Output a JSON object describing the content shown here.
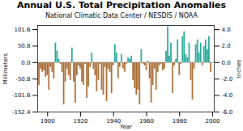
{
  "chart_data": {
    "type": "bar",
    "title": "Annual U.S. Total Precipitation Anomalies",
    "subtitle": "National Climatic Data Center / NESDIS / NOAA",
    "xlabel": "Year",
    "ylabel": "Millimeters",
    "y2label": "Inches",
    "x": [
      1895,
      1896,
      1897,
      1898,
      1899,
      1900,
      1901,
      1902,
      1903,
      1904,
      1905,
      1906,
      1907,
      1908,
      1909,
      1910,
      1911,
      1912,
      1913,
      1914,
      1915,
      1916,
      1917,
      1918,
      1919,
      1920,
      1921,
      1922,
      1923,
      1924,
      1925,
      1926,
      1927,
      1928,
      1929,
      1930,
      1931,
      1932,
      1933,
      1934,
      1935,
      1936,
      1937,
      1938,
      1939,
      1940,
      1941,
      1942,
      1943,
      1944,
      1945,
      1946,
      1947,
      1948,
      1949,
      1950,
      1951,
      1952,
      1953,
      1954,
      1955,
      1956,
      1957,
      1958,
      1959,
      1960,
      1961,
      1962,
      1963,
      1964,
      1965,
      1966,
      1967,
      1968,
      1969,
      1970,
      1971,
      1972,
      1973,
      1974,
      1975,
      1976,
      1977,
      1978,
      1979,
      1980,
      1981,
      1982,
      1983,
      1984,
      1985,
      1986,
      1987,
      1988,
      1989,
      1990,
      1991,
      1992,
      1993,
      1994,
      1995,
      1996,
      1997,
      1998,
      1999
    ],
    "values": [
      -70,
      -20,
      -30,
      -25,
      -45,
      -40,
      -85,
      -15,
      -30,
      -50,
      60,
      35,
      10,
      -5,
      -30,
      -130,
      -60,
      -20,
      -40,
      -55,
      45,
      -60,
      -125,
      -40,
      -10,
      -20,
      -60,
      -70,
      -5,
      -110,
      -75,
      -15,
      30,
      -20,
      -40,
      -90,
      -55,
      -5,
      -85,
      -100,
      -15,
      -120,
      -20,
      -30,
      -95,
      -10,
      55,
      30,
      -50,
      -15,
      25,
      -20,
      -30,
      -5,
      15,
      10,
      20,
      -55,
      -80,
      -100,
      -85,
      -130,
      40,
      -5,
      -10,
      -25,
      5,
      -50,
      -125,
      -70,
      -20,
      -85,
      -30,
      -10,
      -5,
      -25,
      -20,
      35,
      110,
      20,
      60,
      -95,
      -10,
      10,
      70,
      -40,
      -5,
      80,
      95,
      25,
      15,
      60,
      -55,
      -115,
      -20,
      55,
      70,
      30,
      60,
      -10,
      50,
      70,
      40,
      80,
      -30
    ],
    "colors": [
      "#a5692f",
      "#a5692f",
      "#a5692f",
      "#a5692f",
      "#a5692f",
      "#a5692f",
      "#a5692f",
      "#a5692f",
      "#a5692f",
      "#a5692f",
      "#1fa596",
      "#1fa596",
      "#1fa596",
      "#a5692f",
      "#a5692f",
      "#a5692f",
      "#a5692f",
      "#a5692f",
      "#a5692f",
      "#a5692f",
      "#1fa596",
      "#a5692f",
      "#a5692f",
      "#a5692f",
      "#a5692f",
      "#a5692f",
      "#a5692f",
      "#a5692f",
      "#a5692f",
      "#a5692f",
      "#a5692f",
      "#a5692f",
      "#1fa596",
      "#a5692f",
      "#a5692f",
      "#a5692f",
      "#a5692f",
      "#a5692f",
      "#a5692f",
      "#a5692f",
      "#a5692f",
      "#a5692f",
      "#a5692f",
      "#a5692f",
      "#a5692f",
      "#a5692f",
      "#1fa596",
      "#1fa596",
      "#a5692f",
      "#a5692f",
      "#1fa596",
      "#a5692f",
      "#a5692f",
      "#a5692f",
      "#1fa596",
      "#1fa596",
      "#1fa596",
      "#a5692f",
      "#a5692f",
      "#a5692f",
      "#a5692f",
      "#a5692f",
      "#1fa596",
      "#a5692f",
      "#a5692f",
      "#a5692f",
      "#1fa596",
      "#a5692f",
      "#a5692f",
      "#a5692f",
      "#a5692f",
      "#a5692f",
      "#a5692f",
      "#a5692f",
      "#a5692f",
      "#a5692f",
      "#a5692f",
      "#1fa596",
      "#1fa596",
      "#1fa596",
      "#1fa596",
      "#a5692f",
      "#a5692f",
      "#1fa596",
      "#1fa596",
      "#a5692f",
      "#a5692f",
      "#1fa596",
      "#1fa596",
      "#1fa596",
      "#1fa596",
      "#1fa596",
      "#a5692f",
      "#a5692f",
      "#a5692f",
      "#1fa596",
      "#1fa596",
      "#1fa596",
      "#1fa596",
      "#a5692f",
      "#1fa596",
      "#1fa596",
      "#1fa596",
      "#1fa596",
      "#a5692f"
    ],
    "xlim": [
      1894,
      2001
    ],
    "xticks": [
      1900,
      1920,
      1940,
      1960,
      1980,
      2000
    ],
    "ylim": [
      -152.4,
      114.3
    ],
    "yticks": [
      {
        "value": -152.4,
        "label": "-152.4"
      },
      {
        "value": -101.6,
        "label": "-101.6"
      },
      {
        "value": -50.8,
        "label": "-50.8"
      },
      {
        "value": 0,
        "label": "0.0"
      },
      {
        "value": 50.8,
        "label": "50.8"
      },
      {
        "value": 101.6,
        "label": "101.6"
      }
    ],
    "y2lim": [
      -6.0,
      4.5
    ],
    "y2ticks": [
      {
        "value": -6,
        "label": "-6.0"
      },
      {
        "value": -4,
        "label": "-4.0"
      },
      {
        "value": -2,
        "label": "-2.0"
      },
      {
        "value": 0,
        "label": "0.0"
      },
      {
        "value": 2,
        "label": "2.0"
      },
      {
        "value": 4,
        "label": "4.0"
      }
    ],
    "grid": false
  }
}
